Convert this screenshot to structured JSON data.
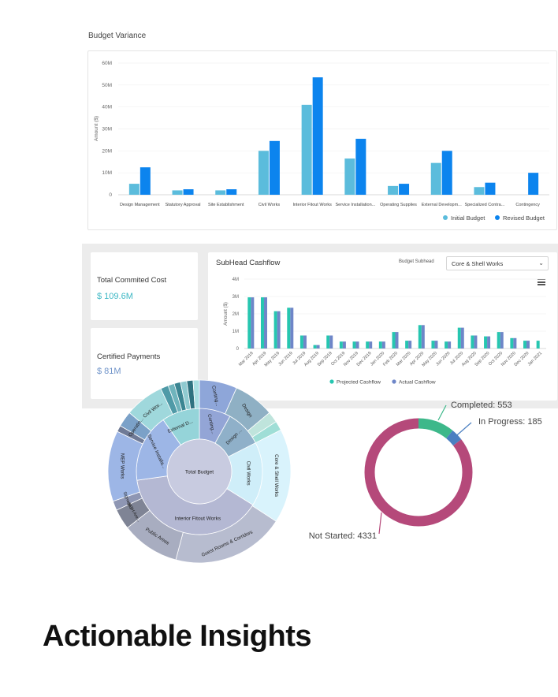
{
  "budget_variance": {
    "title": "Budget Variance",
    "chart_data": {
      "type": "bar",
      "ylabel": "Amount ($)",
      "ylim": [
        0,
        60
      ],
      "yticks": [
        "0",
        "10M",
        "20M",
        "30M",
        "40M",
        "50M",
        "60M"
      ],
      "categories": [
        "Design Management",
        "Statutory Approval",
        "Site Establishment",
        "Civil Works",
        "Interior Fitout Works",
        "Service Installation...",
        "Operating Supplies",
        "External Developm...",
        "Specialized Contra...",
        "Contingency"
      ],
      "series": [
        {
          "name": "Initial Budget",
          "color": "#5bbcdc",
          "values": [
            5,
            2,
            2,
            20,
            41,
            16.5,
            4,
            14.5,
            3.5,
            0
          ]
        },
        {
          "name": "Revised Budget",
          "color": "#0c84ee",
          "values": [
            12.5,
            2.5,
            2.5,
            24.5,
            53.5,
            25.5,
            5,
            20,
            5.5,
            10
          ]
        }
      ],
      "legend": "bottom-right"
    }
  },
  "kpis": [
    {
      "label": "Total Commited Cost",
      "value": "$ 109.6M"
    },
    {
      "label": "Certified Payments",
      "value": "$ 81M"
    }
  ],
  "cashflow": {
    "title": "SubHead Cashflow",
    "subhead_label": "Budget Subhead",
    "subhead_value": "Core & Shell Works",
    "chevron_icon": "chevron-down-icon",
    "menu_icon": "hamburger-menu-icon",
    "chart_data": {
      "type": "bar",
      "ylabel": "Amount ($)",
      "ylim": [
        0,
        4
      ],
      "yticks": [
        "0",
        "1M",
        "2M",
        "3M",
        "4M"
      ],
      "categories": [
        "Mar 2019",
        "Apr 2019",
        "May 2019",
        "Jun 2019",
        "Jul 2019",
        "Aug 2019",
        "Sep 2019",
        "Oct 2019",
        "Nov 2019",
        "Dec 2019",
        "Jan 2020",
        "Feb 2020",
        "Mar 2020",
        "Apr 2020",
        "May 2020",
        "Jun 2020",
        "Jul 2020",
        "Aug 2020",
        "Sep 2020",
        "Oct 2020",
        "Nov 2020",
        "Dec 2020",
        "Jan 2021"
      ],
      "series": [
        {
          "name": "Projected Cashflow",
          "color": "#26c6b0",
          "values": [
            2.95,
            2.95,
            2.15,
            2.35,
            0.75,
            0.2,
            0.75,
            0.4,
            0.4,
            0.4,
            0.4,
            0.95,
            0.45,
            1.35,
            0.45,
            0.4,
            1.2,
            0.75,
            0.7,
            0.95,
            0.6,
            0.45,
            0.45
          ]
        },
        {
          "name": "Actual Cashflow",
          "color": "#6e86c8",
          "values": [
            2.95,
            2.95,
            2.15,
            2.35,
            0.75,
            0.2,
            0.75,
            0.4,
            0.4,
            0.4,
            0.4,
            0.95,
            0.45,
            1.35,
            0.45,
            0.4,
            1.2,
            0.75,
            0.7,
            0.95,
            0.6,
            0.45,
            0.0
          ]
        }
      ],
      "legend": "bottom-center"
    }
  },
  "sunburst": {
    "center_label": "Total Budget",
    "labels": {
      "civil_works_outer": "Civil Wor...",
      "external": "External D...",
      "contingency_outer": "Conting...",
      "design_outer": "Design",
      "core_shell": "Core & Shell Works",
      "civil_works_mid": "Civil Works",
      "contingency_mid": "Conting...",
      "design_mid": "Design ...",
      "operating": "Operatin...",
      "mep": "MEP Works",
      "service": "Service Installa...",
      "interior": "Interior Fitout Works",
      "signages": "Signages",
      "boh": "BOH Are...",
      "public": "Public Areas",
      "guest": "Guest Rooms & Corridors"
    }
  },
  "status_donut": {
    "chart_data": {
      "type": "pie",
      "hole": true,
      "slices": [
        {
          "label": "Completed: 553",
          "value": 553,
          "color": "#3db88a"
        },
        {
          "label": "In Progress: 185",
          "value": 185,
          "color": "#4a7fc1"
        },
        {
          "label": "Not Started: 4331",
          "value": 4331,
          "color": "#b5497a"
        }
      ]
    }
  },
  "heading": "Actionable Insights"
}
